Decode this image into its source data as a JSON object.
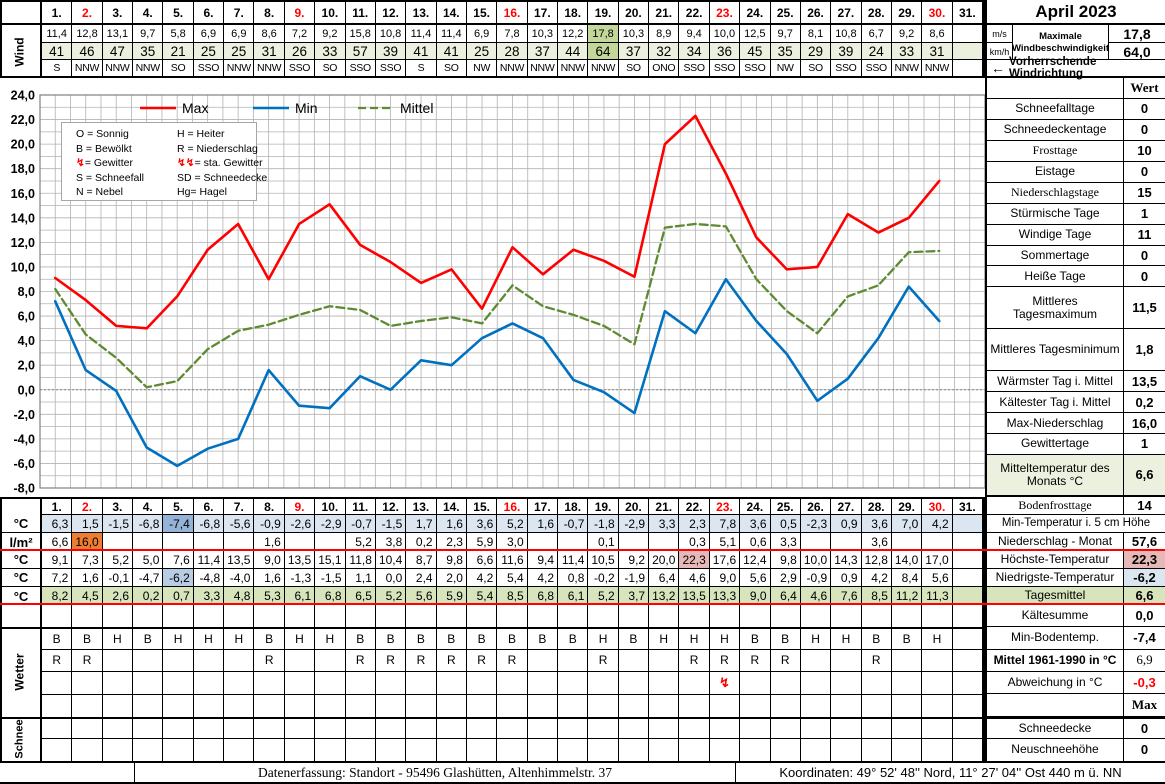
{
  "title": "April 2023",
  "days": [
    "1.",
    "2.",
    "3.",
    "4.",
    "5.",
    "6.",
    "7.",
    "8.",
    "9.",
    "10.",
    "11.",
    "12.",
    "13.",
    "14.",
    "15.",
    "16.",
    "17.",
    "18.",
    "19.",
    "20.",
    "21.",
    "22.",
    "23.",
    "24.",
    "25.",
    "26.",
    "27.",
    "28.",
    "29.",
    "30.",
    "31."
  ],
  "sundays": [
    2,
    9,
    16,
    23,
    30
  ],
  "wind": {
    "label": "Wind",
    "ms": [
      "11,4",
      "12,8",
      "13,1",
      "9,7",
      "5,8",
      "6,9",
      "6,9",
      "8,6",
      "7,2",
      "9,2",
      "15,8",
      "10,8",
      "11,4",
      "11,4",
      "6,9",
      "7,8",
      "10,3",
      "12,2",
      "17,8",
      "10,3",
      "8,9",
      "9,4",
      "10,0",
      "12,5",
      "9,7",
      "8,1",
      "10,8",
      "6,7",
      "9,2",
      "8,6",
      ""
    ],
    "kmh": [
      "41",
      "46",
      "47",
      "35",
      "21",
      "25",
      "25",
      "31",
      "26",
      "33",
      "57",
      "39",
      "41",
      "41",
      "25",
      "28",
      "37",
      "44",
      "64",
      "37",
      "32",
      "34",
      "36",
      "45",
      "35",
      "29",
      "39",
      "24",
      "33",
      "31",
      ""
    ],
    "dir": [
      "S",
      "NNW",
      "NNW",
      "NNW",
      "SO",
      "SSO",
      "NNW",
      "NNW",
      "SSO",
      "SO",
      "SSO",
      "SSO",
      "S",
      "SO",
      "NW",
      "NNW",
      "NNW",
      "NNW",
      "NNW",
      "SO",
      "ONO",
      "SSO",
      "SSO",
      "SSO",
      "NW",
      "SO",
      "SSO",
      "SSO",
      "NNW",
      "NNW",
      ""
    ],
    "row_bg_kmh": "#ebf1de",
    "highlight": {
      "19": "#c4d79b"
    }
  },
  "wind_summary": {
    "ms_label": "m/s",
    "kmh_label": "km/h",
    "max_label": "Maximale Windbeschwindigkeit",
    "ms_value": "17,8",
    "kmh_value": "64,0",
    "arrow": "←",
    "direction_label": "Vorherrschende Windrichtung"
  },
  "code_legend": [
    [
      "O = Sonnig",
      "H = Heiter"
    ],
    [
      "B = Bewölkt",
      "R = Niederschlag"
    ],
    [
      "↯= Gewitter",
      "↯↯= sta. Gewitter"
    ],
    [
      "S = Schneefall",
      "SD = Schneedecke"
    ],
    [
      "N = Nebel",
      "Hg= Hagel"
    ]
  ],
  "chart_data": {
    "type": "line",
    "title": "",
    "x_days": 31,
    "x": [
      1,
      2,
      3,
      4,
      5,
      6,
      7,
      8,
      9,
      10,
      11,
      12,
      13,
      14,
      15,
      16,
      17,
      18,
      19,
      20,
      21,
      22,
      23,
      24,
      25,
      26,
      27,
      28,
      29,
      30
    ],
    "ylim": [
      -8,
      24
    ],
    "ytick_step": 2,
    "grid": true,
    "legend_position": "top",
    "series": [
      {
        "name": "Max",
        "color": "#ff0000",
        "width": 2.6,
        "values": [
          9.1,
          7.3,
          5.2,
          5.0,
          7.6,
          11.4,
          13.5,
          9.0,
          13.5,
          15.1,
          11.8,
          10.4,
          8.7,
          9.8,
          6.6,
          11.6,
          9.4,
          11.4,
          10.5,
          9.2,
          20.0,
          22.3,
          17.6,
          12.4,
          9.8,
          10.0,
          14.3,
          12.8,
          14.0,
          17.0
        ]
      },
      {
        "name": "Min",
        "color": "#0070c0",
        "width": 2.6,
        "values": [
          7.2,
          1.6,
          -0.1,
          -4.7,
          -6.2,
          -4.8,
          -4.0,
          1.6,
          -1.3,
          -1.5,
          1.1,
          0.0,
          2.4,
          2.0,
          4.2,
          5.4,
          4.2,
          0.8,
          -0.2,
          -1.9,
          6.4,
          4.6,
          9.0,
          5.6,
          2.9,
          -0.9,
          0.9,
          4.2,
          8.4,
          5.6
        ]
      },
      {
        "name": "Mittel",
        "color": "#5e8a32",
        "width": 2.3,
        "dash": "8 4",
        "values": [
          8.2,
          4.5,
          2.6,
          0.2,
          0.7,
          3.3,
          4.8,
          5.3,
          6.1,
          6.8,
          6.5,
          5.2,
          5.6,
          5.9,
          5.4,
          8.5,
          6.8,
          6.1,
          5.2,
          3.7,
          13.2,
          13.5,
          13.3,
          9.0,
          6.4,
          4.6,
          7.6,
          8.5,
          11.2,
          11.3
        ]
      }
    ]
  },
  "stats": [
    {
      "label": "",
      "value": "Wert",
      "h": 1,
      "value_serif": true
    },
    {
      "label": "Schneefalltage",
      "value": "0",
      "h": 1
    },
    {
      "label": "Schneedeckentage",
      "value": "0",
      "h": 1
    },
    {
      "label": "Frosttage",
      "value": "10",
      "h": 1,
      "serif": true
    },
    {
      "label": "Eistage",
      "value": "0",
      "h": 1
    },
    {
      "label": "Niederschlagstage",
      "value": "15",
      "h": 1,
      "serif": true
    },
    {
      "label": "Stürmische Tage",
      "value": "1",
      "h": 1
    },
    {
      "label": "Windige Tage",
      "value": "11",
      "h": 1
    },
    {
      "label": "Sommertage",
      "value": "0",
      "h": 1
    },
    {
      "label": "Heiße Tage",
      "value": "0",
      "h": 1
    },
    {
      "label": "Mittleres Tagesmaximum",
      "value": "11,5",
      "h": 2
    },
    {
      "label": "Mittleres Tagesminimum",
      "value": "1,8",
      "h": 2
    },
    {
      "label": "Wärmster Tag i. Mittel",
      "value": "13,5",
      "h": 1
    },
    {
      "label": "Kältester Tag i. Mittel",
      "value": "0,2",
      "h": 1
    },
    {
      "label": "Max-Niederschlag",
      "value": "16,0",
      "h": 1
    },
    {
      "label": "Gewittertage",
      "value": "1",
      "h": 1
    },
    {
      "label": "Mitteltemperatur des Monats °C",
      "value": "6,6",
      "h": 2,
      "bg": "#ebf1de",
      "thick_after": true
    }
  ],
  "stats2": [
    {
      "label": "Bodenfrosttage",
      "value": "14",
      "h": 18,
      "serif": true
    },
    {
      "label": "Min-Temperatur i. 5 cm Höhe",
      "value": null,
      "h": 18,
      "full": true
    },
    {
      "label": "Niederschlag - Monat",
      "value": "57,6",
      "h": 18,
      "nb": true
    },
    {
      "label": "Höchste-Temperatur",
      "value": "22,3",
      "h": 18,
      "value_bg": "#e6b8b7"
    },
    {
      "label": "Niedrigste-Temperatur",
      "value": "-6,2",
      "h": 18,
      "value_bg": "#dce6f1"
    },
    {
      "label": "Tagesmittel",
      "value": "6,6",
      "h": 18,
      "bg": "#d8e4bc",
      "nb": true
    },
    {
      "label": "Kältesumme",
      "value": "0,0",
      "h": 22.4
    },
    {
      "label": "Min-Bodentemp.",
      "value": "-7,4",
      "h": 22.4
    },
    {
      "label": "Mittel 1961-1990 in °C",
      "value": "6,9",
      "h": 22.4,
      "label_bold": true,
      "value_serif": true,
      "value_normal": true
    },
    {
      "label": "Abweichung in °C",
      "value": "-0,3",
      "h": 22.4,
      "value_red": true
    },
    {
      "label": "",
      "value": "Max",
      "h": 22.4,
      "value_serif": true
    },
    {
      "label": "Schneedecke",
      "value": "0",
      "h": 22,
      "thick_before": true
    },
    {
      "label": "Neuschneehöhe",
      "value": "0",
      "h": 22,
      "nb": true
    }
  ],
  "bottom": {
    "rows": [
      {
        "label": "°C",
        "name": "min-temp-5cm-row",
        "values": [
          "6,3",
          "1,5",
          "-1,5",
          "-6,8",
          "-7,4",
          "-6,8",
          "-5,6",
          "-0,9",
          "-2,6",
          "-2,9",
          "-0,7",
          "-1,5",
          "1,7",
          "1,6",
          "3,6",
          "5,2",
          "1,6",
          "-0,7",
          "-1,8",
          "-2,9",
          "3,3",
          "2,3",
          "7,8",
          "3,6",
          "0,5",
          "-2,3",
          "0,9",
          "3,6",
          "7,0",
          "4,2",
          ""
        ],
        "bg": "#dce6f1",
        "highlights": {
          "5": "#95b3d7"
        }
      },
      {
        "label": "l/m²",
        "name": "precipitation-row",
        "values": [
          "6,6",
          "16,0",
          "",
          "",
          "",
          "",
          "",
          "1,6",
          "",
          "",
          "5,2",
          "3,8",
          "0,2",
          "2,3",
          "5,9",
          "3,0",
          "",
          "",
          "0,1",
          "",
          "",
          "0,3",
          "5,1",
          "0,6",
          "3,3",
          "",
          "",
          "3,6",
          "",
          "",
          ""
        ],
        "highlights": {
          "2": "#ed7d31"
        }
      },
      {
        "label": "°C",
        "name": "max-temp-row",
        "values": [
          "9,1",
          "7,3",
          "5,2",
          "5,0",
          "7,6",
          "11,4",
          "13,5",
          "9,0",
          "13,5",
          "15,1",
          "11,8",
          "10,4",
          "8,7",
          "9,8",
          "6,6",
          "11,6",
          "9,4",
          "11,4",
          "10,5",
          "9,2",
          "20,0",
          "22,3",
          "17,6",
          "12,4",
          "9,8",
          "10,0",
          "14,3",
          "12,8",
          "14,0",
          "17,0",
          ""
        ],
        "highlights": {
          "22": "#e6b8b7"
        }
      },
      {
        "label": "°C",
        "name": "min-temp-row",
        "values": [
          "7,2",
          "1,6",
          "-0,1",
          "-4,7",
          "-6,2",
          "-4,8",
          "-4,0",
          "1,6",
          "-1,3",
          "-1,5",
          "1,1",
          "0,0",
          "2,4",
          "2,0",
          "4,2",
          "5,4",
          "4,2",
          "0,8",
          "-0,2",
          "-1,9",
          "6,4",
          "4,6",
          "9,0",
          "5,6",
          "2,9",
          "-0,9",
          "0,9",
          "4,2",
          "8,4",
          "5,6",
          ""
        ],
        "highlights": {
          "5": "#b8cce4"
        }
      },
      {
        "label": "°C",
        "name": "daily-mean-row",
        "values": [
          "8,2",
          "4,5",
          "2,6",
          "0,2",
          "0,7",
          "3,3",
          "4,8",
          "5,3",
          "6,1",
          "6,8",
          "6,5",
          "5,2",
          "5,6",
          "5,9",
          "5,4",
          "8,5",
          "6,8",
          "6,1",
          "5,2",
          "3,7",
          "13,2",
          "13,5",
          "13,3",
          "9,0",
          "6,4",
          "4,6",
          "7,6",
          "8,5",
          "11,2",
          "11,3",
          ""
        ],
        "bg": "#d8e4bc"
      }
    ],
    "wetter_label": "Wetter",
    "wetter_rows": [
      [
        "B",
        "B",
        "H",
        "B",
        "H",
        "H",
        "H",
        "B",
        "H",
        "H",
        "B",
        "B",
        "B",
        "B",
        "B",
        "B",
        "B",
        "B",
        "H",
        "B",
        "H",
        "H",
        "H",
        "B",
        "B",
        "H",
        "H",
        "B",
        "B",
        "H",
        ""
      ],
      [
        "R",
        "R",
        "",
        "",
        "",
        "",
        "",
        "R",
        "",
        "",
        "R",
        "R",
        "R",
        "R",
        "R",
        "R",
        "",
        "",
        "R",
        "",
        "",
        "R",
        "R",
        "R",
        "R",
        "",
        "",
        "R",
        "",
        "",
        ""
      ],
      [
        "",
        "",
        "",
        "",
        "",
        "",
        "",
        "",
        "",
        "",
        "",
        "",
        "",
        "",
        "",
        "",
        "",
        "",
        "",
        "",
        "",
        "",
        "↯",
        "",
        "",
        "",
        "",
        "",
        "",
        "",
        ""
      ],
      [
        "",
        "",
        "",
        "",
        "",
        "",
        "",
        "",
        "",
        "",
        "",
        "",
        "",
        "",
        "",
        "",
        "",
        "",
        "",
        "",
        "",
        "",
        "",
        "",
        "",
        "",
        "",
        "",
        "",
        "",
        ""
      ]
    ],
    "schnee_label": "Schnee"
  },
  "footer": {
    "left": "Datenerfassung:  Standort -  95496  Glashütten, Altenhimmelstr. 37",
    "right": "Koordinaten:  49° 52' 48'' Nord,   11° 27' 04'' Ost   440 m ü. NN"
  }
}
